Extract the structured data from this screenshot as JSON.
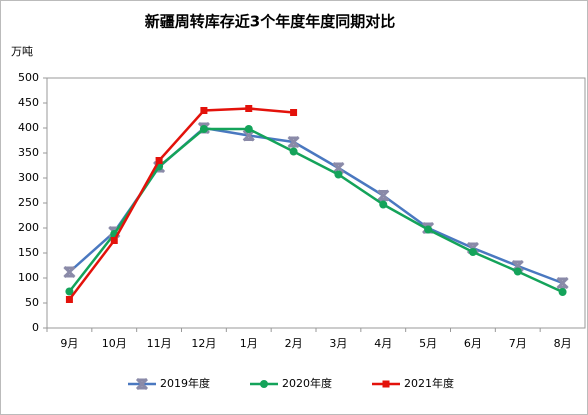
{
  "chart_data": {
    "type": "line",
    "title": "新疆周转库存近3个年度年度同期对比",
    "y_label": "万吨",
    "categories": [
      "9月",
      "10月",
      "11月",
      "12月",
      "1月",
      "2月",
      "3月",
      "4月",
      "5月",
      "6月",
      "7月",
      "8月"
    ],
    "series": [
      {
        "name": "2019年度",
        "color": "#4a78c0",
        "marker": "x",
        "marker_color": "#8a8aa8",
        "values": [
          112,
          192,
          322,
          400,
          385,
          372,
          320,
          265,
          200,
          160,
          124,
          90
        ]
      },
      {
        "name": "2020年度",
        "color": "#14a35a",
        "marker": "circle",
        "marker_color": "#14a35a",
        "values": [
          73,
          188,
          323,
          398,
          398,
          353,
          307,
          247,
          197,
          152,
          113,
          72
        ]
      },
      {
        "name": "2021年度",
        "color": "#e3120b",
        "marker": "square",
        "marker_color": "#e3120b",
        "values": [
          57,
          175,
          335,
          435,
          439,
          431,
          null,
          null,
          null,
          null,
          null,
          null
        ]
      }
    ],
    "ylim": [
      0,
      500
    ],
    "yticks": [
      0,
      50,
      100,
      150,
      200,
      250,
      300,
      350,
      400,
      450,
      500
    ],
    "grid": false,
    "legend": "bottom"
  }
}
